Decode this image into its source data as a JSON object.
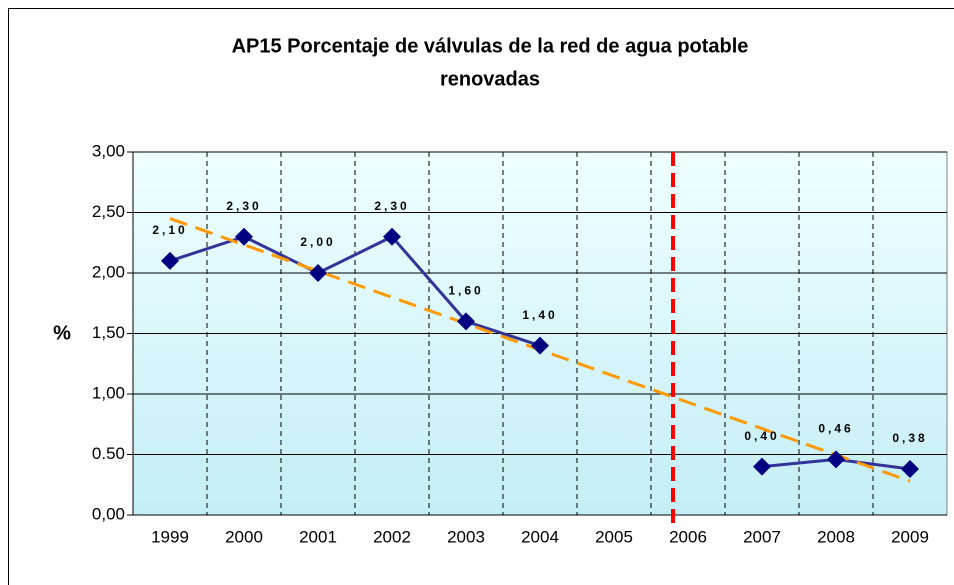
{
  "chart_data": {
    "type": "line",
    "title": [
      "AP15 Porcentaje de válvulas de la red de agua potable",
      "renovadas"
    ],
    "y_label": "%",
    "categories": [
      "1999",
      "2000",
      "2001",
      "2002",
      "2003",
      "2004",
      "2005",
      "2006",
      "2007",
      "2008",
      "2009"
    ],
    "series": [
      {
        "color": "#333399",
        "marker_color": "#000080",
        "values": [
          2.1,
          2.3,
          2.0,
          2.3,
          1.6,
          1.4,
          null,
          null,
          0.4,
          0.46,
          0.38
        ],
        "value_labels": [
          "2,10",
          "2,30",
          "2,00",
          "2,30",
          "1,60",
          "1,40",
          null,
          null,
          "0,40",
          "0,46",
          "0,38"
        ]
      }
    ],
    "trendline": {
      "color": "#ff9900",
      "values": [
        2.45,
        0.28
      ]
    },
    "ylim": [
      0,
      3
    ],
    "yticks": [
      {
        "value": 0,
        "label": "0,00"
      },
      {
        "value": 0.5,
        "label": "0.50"
      },
      {
        "value": 1,
        "label": "1,00"
      },
      {
        "value": 1.5,
        "label": "1,50"
      },
      {
        "value": 2,
        "label": "2,00"
      },
      {
        "value": 2.5,
        "label": "2,50"
      },
      {
        "value": 3,
        "label": "3,00"
      }
    ],
    "grid": true
  }
}
